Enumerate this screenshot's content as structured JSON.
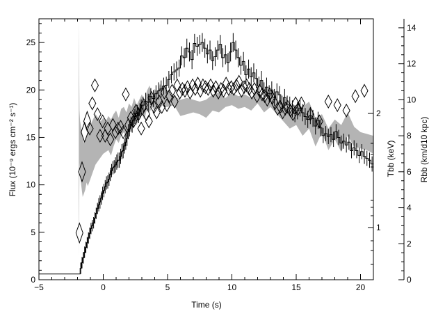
{
  "chart_data": {
    "type": "line",
    "title": "",
    "xlabel": "Time (s)",
    "ylabel_left": "Flux (10⁻⁹ ergs cm⁻² s⁻¹)",
    "ylabel_right_inner": "Tbb (keV)",
    "ylabel_right_outer": "Rbb (km/d10 kpc)",
    "xlim": [
      -5,
      21
    ],
    "ylim_left": [
      0,
      27.5
    ],
    "ylim_right_outer": [
      0,
      14.5
    ],
    "x_ticks": [
      "−5",
      "0",
      "5",
      "10",
      "15",
      "20"
    ],
    "y_left_ticks": [
      "0",
      "5",
      "10",
      "15",
      "20",
      "25"
    ],
    "y_right_outer_ticks": [
      "0",
      "2",
      "4",
      "6",
      "8",
      "10",
      "12",
      "14"
    ],
    "y_right_inner_ticks": [
      "1",
      "2"
    ],
    "series": [
      {
        "name": "",
        "style": "histogram-with-errors",
        "axis": "left",
        "x": [
          -5,
          -1.9,
          -1.8,
          -1.7,
          -1.6,
          -1.5,
          -1.4,
          -1.3,
          -1.2,
          -1.1,
          -1.0,
          -0.9,
          -0.8,
          -0.7,
          -0.6,
          -0.5,
          -0.4,
          -0.3,
          -0.2,
          -0.1,
          0.0,
          0.1,
          0.2,
          0.3,
          0.4,
          0.5,
          0.6,
          0.7,
          0.8,
          0.9,
          1.0,
          1.1,
          1.2,
          1.3,
          1.4,
          1.5,
          1.6,
          1.7,
          1.8,
          1.9,
          2.0,
          2.1,
          2.2,
          2.3,
          2.4,
          2.5,
          2.6,
          2.7,
          2.8,
          2.9,
          3.0,
          3.2,
          3.4,
          3.6,
          3.8,
          4.0,
          4.2,
          4.4,
          4.6,
          4.8,
          5.0,
          5.2,
          5.4,
          5.6,
          5.8,
          6.0,
          6.2,
          6.4,
          6.6,
          6.8,
          7.0,
          7.2,
          7.4,
          7.6,
          7.8,
          8.0,
          8.2,
          8.4,
          8.6,
          8.8,
          9.0,
          9.2,
          9.4,
          9.6,
          9.8,
          10.0,
          10.2,
          10.4,
          10.6,
          10.8,
          11.0,
          11.2,
          11.4,
          11.6,
          11.8,
          12.0,
          12.2,
          12.4,
          12.6,
          12.8,
          13.0,
          13.2,
          13.4,
          13.6,
          13.8,
          14.0,
          14.2,
          14.4,
          14.6,
          14.8,
          15.0,
          15.2,
          15.4,
          15.6,
          15.8,
          16.0,
          16.2,
          16.4,
          16.6,
          16.8,
          17.0,
          17.2,
          17.4,
          17.6,
          17.8,
          18.0,
          18.2,
          18.4,
          18.6,
          18.8,
          19.0,
          19.2,
          19.4,
          19.6,
          19.8,
          20.0,
          20.2,
          20.4,
          20.6,
          20.8
        ],
        "values": [
          0.6,
          0.6,
          1.2,
          1.8,
          2.3,
          2.9,
          3.4,
          3.9,
          4.4,
          4.9,
          5.4,
          5.7,
          6.0,
          6.5,
          7.0,
          7.5,
          7.9,
          8.2,
          8.6,
          9.1,
          9.4,
          9.8,
          10.2,
          10.3,
          10.6,
          11.1,
          11.5,
          11.8,
          11.9,
          12.1,
          12.4,
          12.6,
          12.6,
          13.0,
          13.5,
          13.6,
          14.1,
          14.5,
          14.9,
          15.6,
          15.9,
          16.4,
          16.3,
          16.8,
          17.2,
          17.5,
          17.6,
          17.3,
          17.8,
          18.2,
          18.4,
          18.8,
          18.7,
          19.3,
          19.1,
          19.6,
          19.9,
          20.1,
          20.4,
          20.5,
          21.1,
          21.6,
          21.9,
          22.1,
          22.3,
          23.6,
          23.4,
          24.4,
          24.0,
          23.2,
          24.9,
          24.6,
          24.8,
          25.0,
          24.4,
          23.8,
          24.2,
          23.1,
          23.5,
          24.2,
          24.8,
          23.4,
          23.7,
          22.9,
          24.0,
          25.0,
          24.2,
          23.4,
          22.6,
          23.0,
          21.6,
          22.2,
          21.4,
          21.8,
          21.2,
          20.4,
          21.0,
          19.8,
          20.3,
          19.6,
          20.0,
          19.2,
          19.8,
          19.5,
          18.5,
          19.2,
          18.5,
          18.4,
          18.0,
          17.5,
          17.8,
          18.1,
          17.6,
          17.2,
          16.9,
          17.3,
          17.0,
          16.2,
          16.8,
          16.0,
          15.2,
          15.4,
          15.1,
          15.3,
          14.8,
          15.6,
          15.0,
          14.4,
          14.6,
          14.2,
          14.5,
          13.6,
          13.9,
          13.6,
          13.1,
          13.5,
          13.0,
          12.8,
          12.6,
          12.2
        ],
        "errors": [
          0.0,
          0.0,
          0.6,
          0.6,
          0.6,
          0.6,
          0.6,
          0.6,
          0.6,
          0.6,
          0.6,
          0.6,
          0.6,
          0.6,
          0.6,
          0.6,
          0.7,
          0.7,
          0.7,
          0.7,
          0.7,
          0.7,
          0.7,
          0.7,
          0.7,
          0.7,
          0.7,
          0.7,
          0.7,
          0.8,
          0.8,
          0.8,
          0.8,
          0.8,
          0.8,
          0.8,
          0.8,
          0.8,
          0.8,
          0.8,
          0.8,
          0.8,
          0.8,
          0.8,
          0.8,
          0.8,
          0.8,
          0.8,
          0.8,
          0.8,
          0.9,
          0.9,
          0.9,
          0.9,
          0.9,
          0.9,
          0.9,
          0.9,
          0.9,
          0.9,
          0.9,
          0.9,
          0.9,
          0.9,
          0.9,
          1.0,
          1.0,
          1.0,
          1.0,
          1.0,
          1.0,
          1.0,
          1.0,
          1.0,
          1.0,
          1.0,
          1.0,
          1.0,
          1.0,
          1.0,
          1.0,
          1.0,
          1.0,
          1.0,
          1.0,
          1.0,
          1.0,
          1.0,
          1.0,
          1.0,
          1.0,
          1.0,
          1.0,
          1.0,
          1.0,
          1.0,
          1.0,
          1.0,
          1.0,
          0.9,
          0.9,
          0.9,
          0.9,
          0.9,
          0.9,
          0.9,
          0.9,
          0.9,
          0.9,
          0.9,
          0.9,
          0.9,
          0.9,
          0.9,
          0.9,
          0.9,
          0.9,
          0.9,
          0.9,
          0.9,
          0.8,
          0.8,
          0.8,
          0.8,
          0.8,
          0.8,
          0.8,
          0.8,
          0.8,
          0.8,
          0.8,
          0.8,
          0.8,
          0.8,
          0.8,
          0.8,
          0.8,
          0.8,
          0.8,
          0.8
        ]
      },
      {
        "name": "",
        "style": "shaded-band",
        "axis": "right_outer",
        "x": [
          -1.9,
          -1.85,
          -1.8,
          -1.7,
          -1.6,
          -1.5,
          -1.4,
          -1.3,
          -1.2,
          -1.0,
          -0.8,
          -0.6,
          -0.4,
          -0.2,
          0.0,
          0.2,
          0.4,
          0.6,
          0.8,
          1.0,
          1.2,
          1.4,
          1.6,
          1.8,
          2.0,
          2.2,
          2.4,
          2.6,
          2.8,
          3.0,
          3.2,
          3.4,
          3.6,
          3.8,
          4.0,
          4.2,
          4.4,
          4.6,
          4.8,
          5.0,
          5.5,
          6.0,
          6.5,
          7.0,
          7.5,
          8.0,
          8.5,
          9.0,
          9.5,
          10.0,
          10.5,
          11.0,
          11.5,
          12.0,
          12.5,
          13.0,
          13.5,
          14.0,
          14.5,
          15.0,
          15.5,
          16.0,
          16.5,
          17.0,
          17.5,
          18.0,
          18.5,
          19.0,
          19.5,
          20.0,
          20.5,
          21.0
        ],
        "lower": [
          1.2,
          6.5,
          5.8,
          5.2,
          4.6,
          4.8,
          5.0,
          5.4,
          5.2,
          5.6,
          6.0,
          6.4,
          6.6,
          6.8,
          7.0,
          7.1,
          7.2,
          6.9,
          7.4,
          7.8,
          7.6,
          8.0,
          8.2,
          7.9,
          8.4,
          8.6,
          8.8,
          8.6,
          9.0,
          9.2,
          8.9,
          9.5,
          9.3,
          9.6,
          9.4,
          9.8,
          9.5,
          9.7,
          9.6,
          9.6,
          9.7,
          9.1,
          9.2,
          9.3,
          9.2,
          9.0,
          9.4,
          9.3,
          9.6,
          9.7,
          9.5,
          9.6,
          9.4,
          9.8,
          9.3,
          9.6,
          9.2,
          8.8,
          8.4,
          8.6,
          8.0,
          8.4,
          7.4,
          8.2,
          7.2,
          7.8,
          7.1,
          8.0,
          7.4,
          7.3,
          7.2,
          7.0
        ],
        "upper": [
          14.5,
          9.4,
          8.8,
          8.4,
          8.0,
          7.6,
          7.8,
          8.0,
          8.2,
          8.6,
          8.9,
          9.2,
          9.0,
          8.8,
          9.0,
          8.8,
          9.1,
          8.9,
          9.2,
          9.4,
          9.0,
          9.5,
          9.6,
          9.3,
          9.8,
          9.6,
          10.1,
          9.7,
          10.0,
          10.3,
          9.9,
          10.5,
          10.8,
          10.2,
          10.6,
          10.4,
          10.9,
          10.6,
          10.8,
          10.4,
          10.2,
          10.0,
          10.1,
          10.0,
          9.9,
          10.0,
          10.3,
          10.4,
          10.1,
          10.4,
          10.2,
          10.3,
          10.1,
          10.5,
          10.0,
          10.2,
          10.0,
          9.8,
          9.3,
          9.7,
          9.6,
          9.9,
          9.0,
          9.2,
          8.4,
          8.9,
          8.6,
          9.3,
          8.5,
          8.2,
          8.1,
          8.0
        ]
      },
      {
        "name": "",
        "style": "diamond-markers",
        "axis": "right_outer",
        "x": [
          -1.85,
          -1.65,
          -1.45,
          -1.25,
          -1.05,
          -0.85,
          -0.65,
          -0.45,
          -0.25,
          -0.05,
          0.15,
          0.35,
          0.55,
          0.75,
          0.95,
          1.15,
          1.35,
          1.55,
          1.75,
          1.95,
          2.15,
          2.35,
          2.55,
          2.75,
          2.95,
          3.15,
          3.35,
          3.55,
          3.75,
          3.95,
          4.15,
          4.35,
          4.55,
          4.75,
          4.95,
          5.15,
          5.35,
          5.55,
          5.75,
          5.95,
          6.15,
          6.35,
          6.55,
          6.75,
          6.95,
          7.15,
          7.35,
          7.55,
          7.75,
          7.95,
          8.15,
          8.35,
          8.55,
          8.75,
          8.95,
          9.15,
          9.35,
          9.55,
          9.75,
          9.95,
          10.15,
          10.35,
          10.55,
          10.75,
          10.95,
          11.15,
          11.35,
          11.55,
          11.75,
          11.95,
          12.15,
          12.35,
          12.55,
          12.75,
          12.95,
          13.15,
          13.35,
          13.55,
          13.75,
          13.95,
          14.15,
          14.35,
          14.55,
          14.75,
          14.95,
          15.15,
          15.4,
          16.1,
          16.8,
          17.5,
          18.2,
          18.9,
          19.6,
          20.3
        ],
        "values": [
          2.6,
          6.0,
          8.2,
          8.8,
          8.4,
          9.8,
          10.8,
          9.2,
          8.0,
          8.8,
          8.0,
          8.4,
          7.8,
          8.6,
          8.2,
          8.4,
          8.5,
          8.2,
          10.3,
          8.6,
          9.0,
          8.8,
          9.4,
          9.2,
          8.4,
          9.7,
          9.2,
          8.8,
          10.1,
          9.6,
          9.3,
          9.9,
          9.6,
          10.4,
          9.7,
          10.2,
          10.5,
          9.9,
          10.8,
          10.4,
          10.6,
          10.5,
          10.7,
          10.4,
          10.8,
          10.6,
          10.9,
          10.5,
          10.8,
          10.7,
          10.6,
          10.8,
          10.5,
          10.7,
          10.4,
          10.6,
          10.5,
          10.9,
          10.6,
          10.7,
          10.6,
          10.8,
          11.0,
          10.5,
          10.7,
          10.8,
          10.6,
          10.4,
          10.6,
          10.2,
          10.5,
          10.3,
          10.2,
          10.0,
          10.3,
          10.1,
          9.8,
          9.5,
          9.6,
          9.3,
          9.5,
          9.6,
          9.4,
          9.2,
          9.8,
          9.5,
          9.8,
          9.2,
          8.8,
          9.9,
          9.7,
          9.4,
          10.2,
          10.5
        ]
      }
    ]
  }
}
